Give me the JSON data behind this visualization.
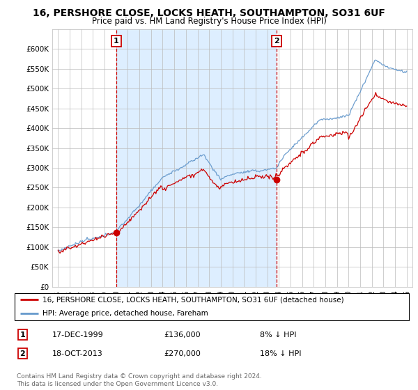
{
  "title": "16, PERSHORE CLOSE, LOCKS HEATH, SOUTHAMPTON, SO31 6UF",
  "subtitle": "Price paid vs. HM Land Registry's House Price Index (HPI)",
  "legend_line1": "16, PERSHORE CLOSE, LOCKS HEATH, SOUTHAMPTON, SO31 6UF (detached house)",
  "legend_line2": "HPI: Average price, detached house, Fareham",
  "annotation1_num": "1",
  "annotation1_date": "17-DEC-1999",
  "annotation1_price": "£136,000",
  "annotation1_hpi": "8% ↓ HPI",
  "annotation2_num": "2",
  "annotation2_date": "18-OCT-2013",
  "annotation2_price": "£270,000",
  "annotation2_hpi": "18% ↓ HPI",
  "footer": "Contains HM Land Registry data © Crown copyright and database right 2024.\nThis data is licensed under the Open Government Licence v3.0.",
  "purchase1_year": 2000.0,
  "purchase1_price": 136000,
  "purchase2_year": 2013.8,
  "purchase2_price": 270000,
  "red_color": "#cc0000",
  "blue_color": "#6699cc",
  "shade_color": "#ddeeff",
  "background_color": "#ffffff",
  "grid_color": "#bbbbbb",
  "ylim": [
    0,
    650000
  ],
  "xlim_start": 1994.5,
  "xlim_end": 2025.5
}
